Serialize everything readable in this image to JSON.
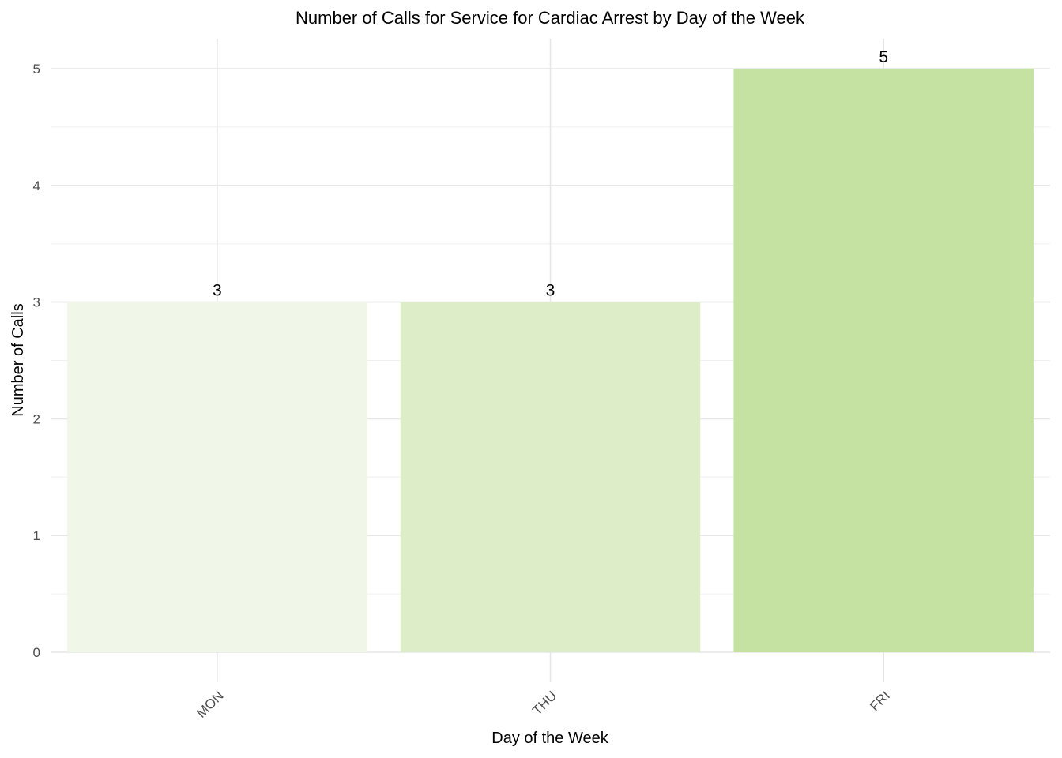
{
  "chart_data": {
    "type": "bar",
    "title": "Number of Calls for Service for Cardiac Arrest by Day of the Week",
    "xlabel": "Day of the Week",
    "ylabel": "Number of Calls",
    "categories": [
      "MON",
      "THU",
      "FRI"
    ],
    "values": [
      3,
      3,
      5
    ],
    "data_labels": [
      "3",
      "3",
      "5"
    ],
    "colors": [
      "#f0f7e8",
      "#ddedc8",
      "#c6e2a3"
    ],
    "ylim": [
      0,
      5.27
    ],
    "yticks": [
      0,
      1,
      2,
      3,
      4,
      5
    ],
    "ytick_labels": [
      "0",
      "1",
      "2",
      "3",
      "4",
      "5"
    ],
    "grid": true,
    "legend": "none"
  }
}
